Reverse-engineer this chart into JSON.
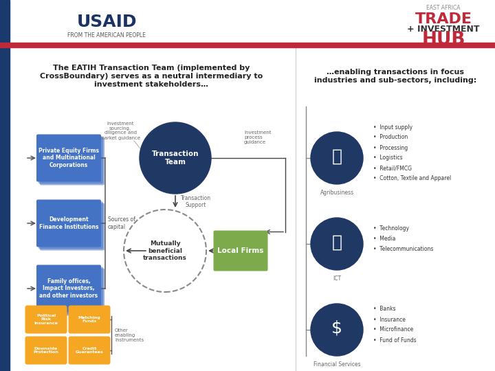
{
  "bg_color": "#ffffff",
  "header_bar_color": "#c0293a",
  "title_left": "The EATIH Transaction Team (implemented by\nCrossBoundary) serves as a neutral intermediary to\ninvestment stakeholders…",
  "title_right": "…enabling transactions in focus\nindustries and sub-sectors, including:",
  "transaction_team_color": "#1f3864",
  "transaction_team_label": "Transaction\nTeam",
  "mutually_label": "Mutually\nbeneficial\ntransactions",
  "local_firms_color": "#7dab4c",
  "local_firms_label": "Local Firms",
  "investor_boxes": [
    {
      "label": "Private Equity Firms\nand Multinational\nCorporations",
      "color": "#4472c4"
    },
    {
      "label": "Development\nFinance Institutions",
      "color": "#4472c4"
    },
    {
      "label": "Family offices,\nImpact Investors,\nand other investors",
      "color": "#4472c4"
    }
  ],
  "enabling_boxes": [
    {
      "label": "Political\nRisk\nInsurance",
      "color": "#f5a623"
    },
    {
      "label": "Matching\nFunds",
      "color": "#f5a623"
    },
    {
      "label": "Downside\nProtection",
      "color": "#f5a623"
    },
    {
      "label": "Credit\nGuarantees",
      "color": "#f5a623"
    }
  ],
  "agriculture_label": "Agribusiness",
  "ict_label": "ICT",
  "finance_label": "Financial Services",
  "agriculture_bullets": [
    "Input supply",
    "Production",
    "Processing",
    "Logistics",
    "Retail/FMCG",
    "Cotton, Textile and Apparel"
  ],
  "ict_bullets": [
    "Technology",
    "Media",
    "Telecommunications"
  ],
  "finance_bullets": [
    "Banks",
    "Insurance",
    "Microfinance",
    "Fund of Funds"
  ],
  "annotation_sourcing": "Investment\nsourcing,\ndiligence and\nmarket guidance",
  "annotation_process": "Investment\nprocess\nguidance",
  "annotation_support": "Transaction\nSupport",
  "annotation_sources": "Sources of\ncapital",
  "annotation_other": "Other\nenabling\ninstruments"
}
